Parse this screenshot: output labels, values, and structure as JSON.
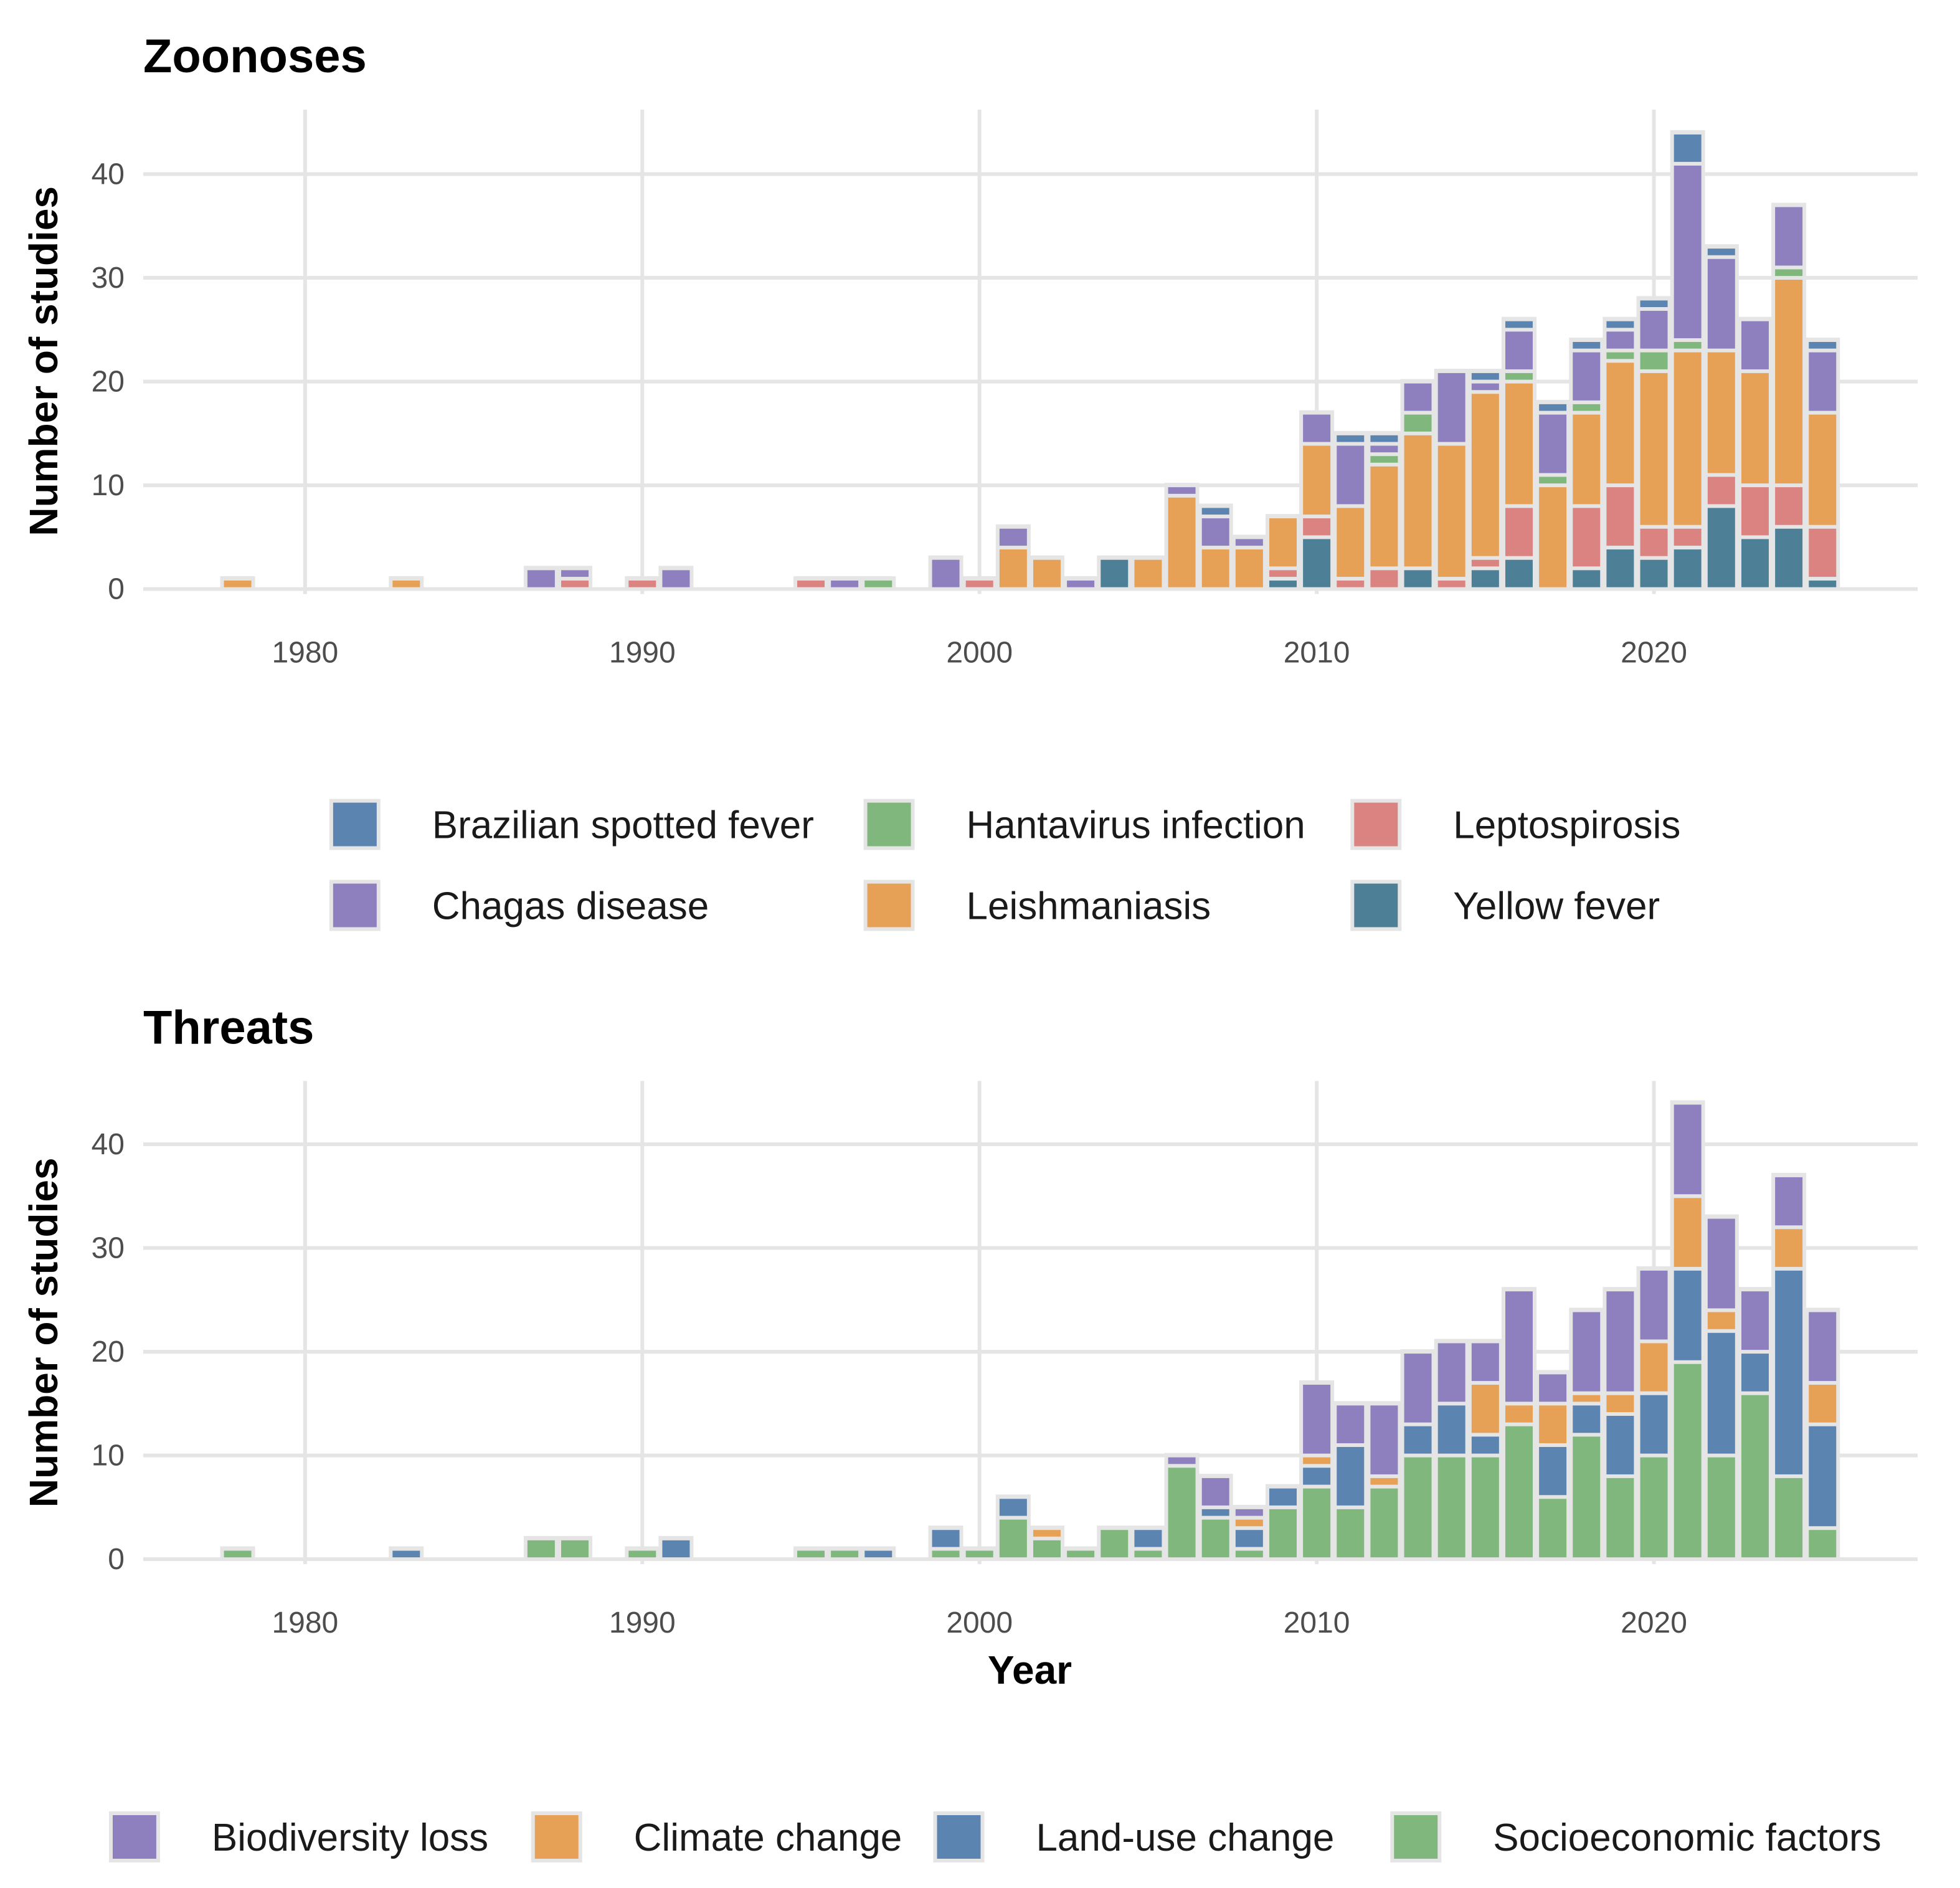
{
  "chart_data": [
    {
      "type": "bar",
      "stacked": true,
      "title": "Zoonoses",
      "xlabel": "",
      "ylabel": "Number of studies",
      "ylim": [
        0,
        46
      ],
      "xlim": [
        1975,
        2028
      ],
      "xticks": [
        "1980",
        "1990",
        "2000",
        "2010",
        "2020"
      ],
      "yticks": [
        "0",
        "10",
        "20",
        "30",
        "40"
      ],
      "legend_position": "bottom",
      "years": [
        1978,
        1983,
        1987,
        1988,
        1990,
        1991,
        1995,
        1996,
        1997,
        1999,
        2000,
        2001,
        2002,
        2003,
        2004,
        2005,
        2006,
        2007,
        2008,
        2009,
        2010,
        2011,
        2012,
        2013,
        2014,
        2015,
        2016,
        2017,
        2018,
        2019,
        2020,
        2021,
        2022,
        2023,
        2024,
        2025
      ],
      "series": [
        {
          "name": "Yellow fever",
          "color": "#4d7f96",
          "values": [
            0,
            0,
            0,
            0,
            0,
            0,
            0,
            0,
            0,
            0,
            0,
            0,
            0,
            0,
            3,
            0,
            0,
            0,
            0,
            1,
            5,
            0,
            0,
            2,
            0,
            2,
            3,
            0,
            2,
            4,
            3,
            4,
            8,
            5,
            6,
            1
          ]
        },
        {
          "name": "Leptospirosis",
          "color": "#da8380",
          "values": [
            0,
            0,
            0,
            1,
            1,
            0,
            1,
            0,
            0,
            0,
            1,
            0,
            0,
            0,
            0,
            0,
            0,
            0,
            0,
            1,
            2,
            1,
            2,
            0,
            1,
            1,
            5,
            0,
            6,
            6,
            3,
            2,
            3,
            5,
            4,
            5
          ]
        },
        {
          "name": "Leishmaniasis",
          "color": "#e6a157",
          "values": [
            1,
            1,
            0,
            0,
            0,
            0,
            0,
            0,
            0,
            0,
            0,
            4,
            3,
            0,
            0,
            3,
            9,
            4,
            4,
            5,
            7,
            7,
            10,
            13,
            13,
            16,
            12,
            10,
            9,
            12,
            15,
            17,
            12,
            11,
            20,
            11
          ]
        },
        {
          "name": "Hantavirus infection",
          "color": "#80b77c",
          "values": [
            0,
            0,
            0,
            0,
            0,
            0,
            0,
            0,
            1,
            0,
            0,
            0,
            0,
            0,
            0,
            0,
            0,
            0,
            0,
            0,
            0,
            0,
            1,
            2,
            0,
            0,
            1,
            1,
            1,
            1,
            2,
            1,
            0,
            0,
            1,
            0
          ]
        },
        {
          "name": "Chagas disease",
          "color": "#8e7fbe",
          "values": [
            0,
            0,
            2,
            1,
            0,
            2,
            0,
            1,
            0,
            3,
            0,
            2,
            0,
            1,
            0,
            0,
            1,
            3,
            1,
            0,
            3,
            6,
            1,
            3,
            7,
            1,
            4,
            6,
            5,
            2,
            4,
            17,
            9,
            5,
            6,
            6
          ]
        },
        {
          "name": "Brazilian spotted fever",
          "color": "#5b84b1",
          "values": [
            0,
            0,
            0,
            0,
            0,
            0,
            0,
            0,
            0,
            0,
            0,
            0,
            0,
            0,
            0,
            0,
            0,
            1,
            0,
            0,
            0,
            1,
            1,
            0,
            0,
            1,
            1,
            1,
            1,
            1,
            1,
            3,
            1,
            0,
            0,
            1
          ]
        }
      ],
      "legend": [
        "Brazilian spotted fever",
        "Hantavirus infection",
        "Leptospirosis",
        "Chagas disease",
        "Leishmaniasis",
        "Yellow fever"
      ]
    },
    {
      "type": "bar",
      "stacked": true,
      "title": "Threats",
      "xlabel": "Year",
      "ylabel": "Number of studies",
      "ylim": [
        0,
        46
      ],
      "xlim": [
        1975,
        2028
      ],
      "xticks": [
        "1980",
        "1990",
        "2000",
        "2010",
        "2020"
      ],
      "yticks": [
        "0",
        "10",
        "20",
        "30",
        "40"
      ],
      "legend_position": "bottom",
      "years": [
        1978,
        1983,
        1987,
        1988,
        1990,
        1991,
        1995,
        1996,
        1997,
        1999,
        2000,
        2001,
        2002,
        2003,
        2004,
        2005,
        2006,
        2007,
        2008,
        2009,
        2010,
        2011,
        2012,
        2013,
        2014,
        2015,
        2016,
        2017,
        2018,
        2019,
        2020,
        2021,
        2022,
        2023,
        2024,
        2025
      ],
      "series": [
        {
          "name": "Socioeconomic factors",
          "color": "#80b77c",
          "values": [
            1,
            0,
            2,
            2,
            1,
            0,
            1,
            1,
            0,
            1,
            1,
            4,
            2,
            1,
            3,
            1,
            9,
            4,
            1,
            5,
            7,
            5,
            7,
            10,
            10,
            10,
            13,
            6,
            12,
            8,
            10,
            19,
            10,
            16,
            8,
            3
          ]
        },
        {
          "name": "Land-use change",
          "color": "#5b84b1",
          "values": [
            0,
            1,
            0,
            0,
            0,
            2,
            0,
            0,
            1,
            2,
            0,
            2,
            0,
            0,
            0,
            2,
            0,
            1,
            2,
            2,
            2,
            6,
            0,
            3,
            5,
            2,
            0,
            5,
            3,
            6,
            6,
            9,
            12,
            4,
            20,
            10
          ]
        },
        {
          "name": "Climate change",
          "color": "#e6a157",
          "values": [
            0,
            0,
            0,
            0,
            0,
            0,
            0,
            0,
            0,
            0,
            0,
            0,
            1,
            0,
            0,
            0,
            0,
            0,
            1,
            0,
            1,
            0,
            1,
            0,
            0,
            5,
            2,
            4,
            1,
            2,
            5,
            7,
            2,
            0,
            4,
            4
          ]
        },
        {
          "name": "Biodiversity loss",
          "color": "#8e7fbe",
          "values": [
            0,
            0,
            0,
            0,
            0,
            0,
            0,
            0,
            0,
            0,
            0,
            0,
            0,
            0,
            0,
            0,
            1,
            3,
            1,
            0,
            7,
            4,
            7,
            7,
            6,
            4,
            11,
            3,
            8,
            10,
            7,
            9,
            9,
            6,
            5,
            7
          ]
        }
      ],
      "legend": [
        "Biodiversity loss",
        "Climate change",
        "Land-use change",
        "Socioeconomic factors"
      ]
    }
  ]
}
